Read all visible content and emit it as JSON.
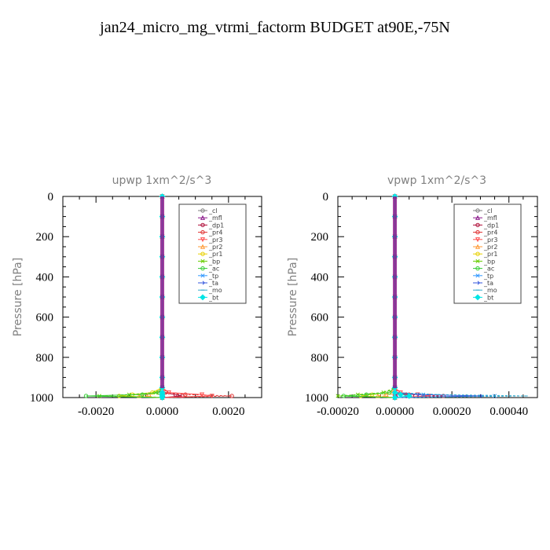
{
  "figure": {
    "title": "jan24_micro_mg_vtrmi_factorm  BUDGET at90E,-75N"
  },
  "chart_data": [
    {
      "type": "line",
      "title": "upwp   1xm^2/s^3",
      "ylabel": "Pressure [hPa]",
      "xlim": [
        -0.003,
        0.003
      ],
      "ylim": [
        1000,
        0
      ],
      "xticks": [
        -0.002,
        0.0,
        0.002
      ],
      "xtick_labels": [
        "-0.0020",
        "0.0000",
        "0.0020"
      ],
      "yticks": [
        0,
        200,
        400,
        600,
        800,
        1000
      ],
      "ytick_labels": [
        "0",
        "200",
        "400",
        "600",
        "800",
        "1000"
      ],
      "legend_position": "top-right",
      "y": [
        0,
        100,
        200,
        300,
        400,
        500,
        600,
        700,
        800,
        900,
        950,
        975,
        985,
        992,
        1000
      ],
      "series": [
        {
          "name": "_cl",
          "color": "#7f7f7f",
          "marker": "circle",
          "values": [
            0,
            0,
            0,
            0,
            0,
            0,
            0,
            0,
            0,
            0,
            0,
            0,
            0,
            0,
            0
          ]
        },
        {
          "name": "_mfl",
          "color": "#8b1a8b",
          "marker": "triangle",
          "values": [
            0,
            0,
            0,
            0,
            0,
            0,
            0,
            0,
            0,
            0,
            0,
            0,
            2e-05,
            3e-05,
            0
          ]
        },
        {
          "name": "_dp1",
          "color": "#b0103a",
          "marker": "circle",
          "values": [
            0,
            0,
            0,
            0,
            0,
            0,
            0,
            0,
            0,
            0,
            0,
            0,
            0.0004,
            0.0006,
            0
          ]
        },
        {
          "name": "_pr4",
          "color": "#e03030",
          "marker": "circle",
          "values": [
            0,
            0,
            0,
            0,
            0,
            0,
            0,
            0,
            0,
            0,
            0,
            0.0001,
            0.0007,
            0.0021,
            0
          ]
        },
        {
          "name": "_pr3",
          "color": "#ff5050",
          "marker": "triangle-down",
          "values": [
            0,
            0,
            0,
            0,
            0,
            0,
            0,
            0,
            0,
            0,
            0,
            0.0002,
            0.0012,
            0.0015,
            0
          ]
        },
        {
          "name": "_pr2",
          "color": "#ff9933",
          "marker": "triangle",
          "values": [
            0,
            0,
            0,
            0,
            0,
            0,
            0,
            0,
            0,
            0,
            0,
            -0.0001,
            -0.0004,
            -0.0007,
            0
          ]
        },
        {
          "name": "_pr1",
          "color": "#e8d000",
          "marker": "circle",
          "values": [
            0,
            0,
            0,
            0,
            0,
            0,
            0,
            0,
            0,
            0,
            0,
            -0.0003,
            -0.0009,
            -0.0013,
            0
          ]
        },
        {
          "name": "_bp",
          "color": "#66cc00",
          "marker": "x",
          "values": [
            0,
            0,
            0,
            0,
            0,
            0,
            0,
            0,
            0,
            0,
            0,
            -0.0002,
            -0.001,
            -0.0019,
            0
          ]
        },
        {
          "name": "_ac",
          "color": "#33cc33",
          "marker": "circle",
          "values": [
            0,
            0,
            0,
            0,
            0,
            0,
            0,
            0,
            0,
            0,
            0,
            -0.0001,
            -0.0006,
            -0.0023,
            0
          ]
        },
        {
          "name": "_tp",
          "color": "#3399ff",
          "marker": "x",
          "values": [
            0,
            0,
            0,
            0,
            0,
            0,
            0,
            0,
            0,
            0,
            0,
            0,
            0,
            0,
            0
          ]
        },
        {
          "name": "_ta",
          "color": "#3355dd",
          "marker": "arrow",
          "values": [
            0,
            0,
            0,
            0,
            0,
            0,
            0,
            0,
            0,
            0,
            0,
            0,
            0,
            0,
            0
          ]
        },
        {
          "name": "_mo",
          "color": "#33aacc",
          "marker": "dash",
          "values": [
            0,
            0,
            0,
            0,
            0,
            0,
            0,
            0,
            0,
            0,
            0,
            0,
            0,
            0,
            0
          ]
        },
        {
          "name": "_bt",
          "color": "#00e5e5",
          "marker": "diamond",
          "values": [
            0,
            0,
            0,
            0,
            0,
            0,
            0,
            0,
            0,
            0,
            0,
            0,
            0,
            0,
            0
          ]
        }
      ]
    },
    {
      "type": "line",
      "title": "vpwp   1xm^2/s^3",
      "ylabel": "Pressure [hPa]",
      "xlim": [
        -0.0002,
        0.0005
      ],
      "ylim": [
        1000,
        0
      ],
      "xticks": [
        -0.0002,
        0.0,
        0.0002,
        0.0004
      ],
      "xtick_labels": [
        "-0.00020",
        "0.00000",
        "0.00020",
        "0.00040"
      ],
      "yticks": [
        0,
        200,
        400,
        600,
        800,
        1000
      ],
      "ytick_labels": [
        "0",
        "200",
        "400",
        "600",
        "800",
        "1000"
      ],
      "legend_position": "top-right",
      "y": [
        0,
        100,
        200,
        300,
        400,
        500,
        600,
        700,
        800,
        900,
        950,
        975,
        985,
        992,
        1000
      ],
      "series": [
        {
          "name": "_cl",
          "color": "#7f7f7f",
          "marker": "circle",
          "values": [
            0,
            0,
            0,
            0,
            0,
            0,
            0,
            0,
            0,
            0,
            0,
            0,
            0,
            0,
            0
          ]
        },
        {
          "name": "_mfl",
          "color": "#8b1a8b",
          "marker": "triangle",
          "values": [
            0,
            0,
            0,
            0,
            0,
            0,
            0,
            0,
            0,
            0,
            0,
            0,
            3e-06,
            4e-06,
            0
          ]
        },
        {
          "name": "_dp1",
          "color": "#b0103a",
          "marker": "circle",
          "values": [
            0,
            0,
            0,
            0,
            0,
            0,
            0,
            0,
            0,
            0,
            0,
            0,
            4e-05,
            6e-05,
            0
          ]
        },
        {
          "name": "_pr4",
          "color": "#e03030",
          "marker": "circle",
          "values": [
            0,
            0,
            0,
            0,
            0,
            0,
            0,
            0,
            0,
            0,
            0,
            1e-05,
            5e-05,
            0.00017,
            0
          ]
        },
        {
          "name": "_pr3",
          "color": "#ff5050",
          "marker": "triangle-down",
          "values": [
            0,
            0,
            0,
            0,
            0,
            0,
            0,
            0,
            0,
            0,
            0,
            2e-05,
            8e-05,
            0.00012,
            0
          ]
        },
        {
          "name": "_pr2",
          "color": "#ff9933",
          "marker": "triangle",
          "values": [
            0,
            0,
            0,
            0,
            0,
            0,
            0,
            0,
            0,
            0,
            0,
            -1e-05,
            -3e-05,
            -6e-05,
            0
          ]
        },
        {
          "name": "_pr1",
          "color": "#e8d000",
          "marker": "circle",
          "values": [
            0,
            0,
            0,
            0,
            0,
            0,
            0,
            0,
            0,
            0,
            0,
            -2e-05,
            -8e-05,
            -0.00012,
            0
          ]
        },
        {
          "name": "_bp",
          "color": "#66cc00",
          "marker": "x",
          "values": [
            0,
            0,
            0,
            0,
            0,
            0,
            0,
            0,
            0,
            0,
            0,
            -4e-05,
            -0.00013,
            -0.0002,
            0
          ]
        },
        {
          "name": "_ac",
          "color": "#33cc33",
          "marker": "circle",
          "values": [
            0,
            0,
            0,
            0,
            0,
            0,
            0,
            0,
            0,
            0,
            0,
            -2e-05,
            -0.0001,
            -0.00018,
            0
          ]
        },
        {
          "name": "_tp",
          "color": "#3399ff",
          "marker": "x",
          "values": [
            0,
            0,
            0,
            0,
            0,
            0,
            0,
            0,
            0,
            0,
            0,
            0,
            0.0001,
            0.00035,
            0
          ]
        },
        {
          "name": "_ta",
          "color": "#3355dd",
          "marker": "arrow",
          "values": [
            0,
            0,
            0,
            0,
            0,
            0,
            0,
            0,
            0,
            0,
            0,
            0,
            8e-05,
            0.0003,
            0
          ]
        },
        {
          "name": "_mo",
          "color": "#33aacc",
          "marker": "dash",
          "values": [
            0,
            0,
            0,
            0,
            0,
            0,
            0,
            0,
            0,
            0,
            0,
            0,
            0.00015,
            0.00046,
            0
          ]
        },
        {
          "name": "_bt",
          "color": "#00e5e5",
          "marker": "diamond",
          "values": [
            0,
            0,
            0,
            0,
            0,
            0,
            0,
            0,
            0,
            0,
            0,
            0,
            2e-05,
            5e-05,
            0
          ]
        }
      ]
    }
  ]
}
